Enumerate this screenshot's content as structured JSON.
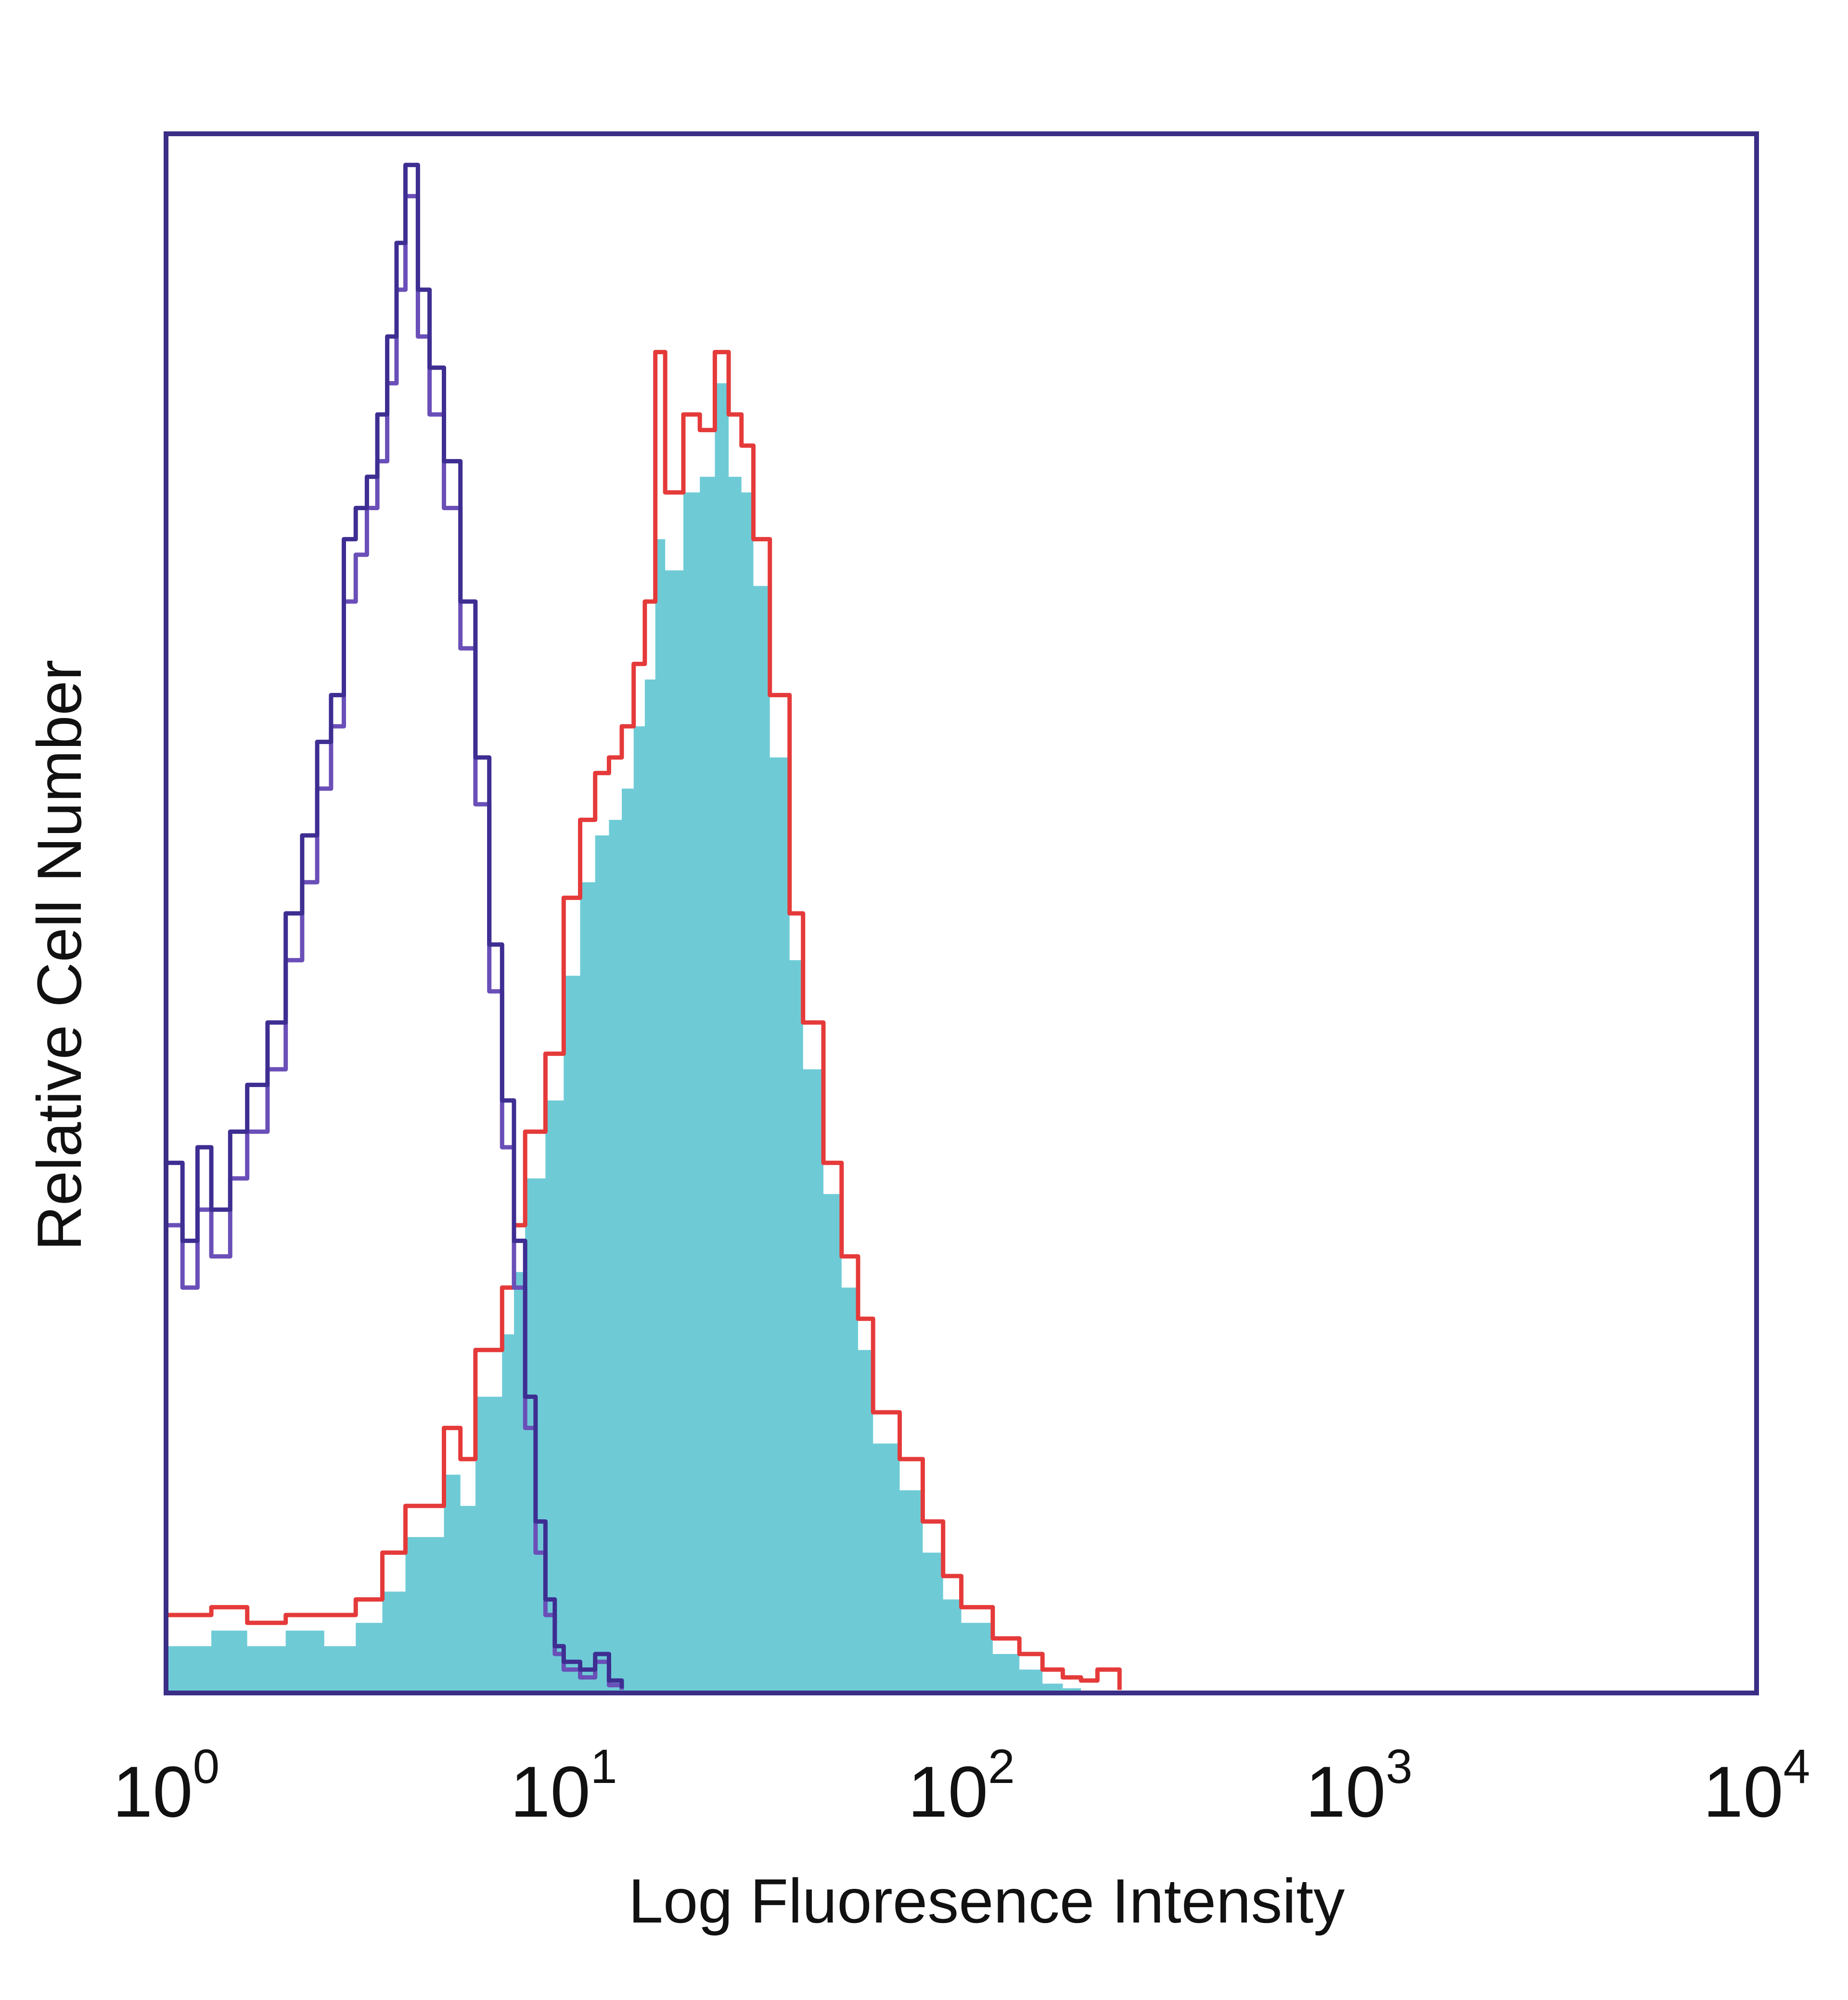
{
  "chart_data": {
    "type": "area",
    "x_scale": "log10",
    "xlim": [
      1,
      10000
    ],
    "ylim": [
      0,
      100
    ],
    "y_ticks_shown": false,
    "grid": false,
    "legend": "none",
    "xlabel": "Log Fluoresence Intensity",
    "ylabel": "Relative Cell Number",
    "x_tick_labels": [
      {
        "value": 1,
        "base": "10",
        "exp": "0"
      },
      {
        "value": 10,
        "base": "10",
        "exp": "1"
      },
      {
        "value": 100,
        "base": "10",
        "exp": "2"
      },
      {
        "value": 1000,
        "base": "10",
        "exp": "3"
      },
      {
        "value": 10000,
        "base": "10",
        "exp": "4"
      }
    ],
    "colors": {
      "frame": "#3a2e86",
      "text": "#111111"
    },
    "series": [
      {
        "style": "fill",
        "fill": "#6ecbd6",
        "x": [
          1.0,
          1.3,
          1.6,
          2.0,
          2.5,
          3.0,
          3.5,
          4.0,
          5.0,
          5.5,
          6.0,
          7.0,
          7.5,
          8.0,
          9.0,
          10,
          11,
          12,
          13,
          14,
          15,
          16,
          17,
          18,
          20,
          22,
          24,
          26,
          28,
          30,
          33,
          37,
          40,
          45,
          50,
          55,
          60,
          70,
          80,
          90,
          100,
          120,
          140,
          160,
          180,
          200
        ],
        "y": [
          3.0,
          4.0,
          3.0,
          4.0,
          3.0,
          4.5,
          6.5,
          10,
          14,
          12,
          19,
          23,
          27,
          33,
          38,
          46,
          52,
          55,
          56,
          58,
          62,
          65,
          74,
          72,
          77,
          78,
          84,
          78,
          77,
          71,
          60,
          47,
          40,
          32,
          26,
          22,
          16,
          13,
          9.0,
          6.0,
          4.5,
          2.5,
          1.5,
          0.6,
          0.3,
          0
        ]
      },
      {
        "style": "line",
        "color": "#e53a3a",
        "x": [
          1.0,
          1.3,
          1.6,
          2.0,
          2.5,
          3.0,
          3.5,
          4.0,
          5.0,
          5.5,
          6.0,
          7.0,
          7.5,
          8.0,
          9.0,
          10,
          11,
          12,
          13,
          14,
          15,
          16,
          17,
          18,
          20,
          22,
          24,
          26,
          28,
          30,
          33,
          37,
          40,
          45,
          50,
          55,
          60,
          70,
          80,
          90,
          100,
          120,
          140,
          160,
          180,
          200,
          220,
          250
        ],
        "y": [
          5.0,
          5.5,
          4.5,
          5.0,
          5.0,
          6.0,
          9.0,
          12,
          17,
          15,
          22,
          26,
          30,
          36,
          41,
          51,
          56,
          59,
          60,
          62,
          66,
          70,
          86,
          77,
          82,
          81,
          86,
          82,
          80,
          74,
          64,
          50,
          43,
          34,
          28,
          24,
          18,
          15,
          11,
          7.5,
          5.5,
          3.5,
          2.5,
          1.5,
          1.0,
          0.8,
          1.5,
          0.2
        ]
      },
      {
        "style": "line",
        "color": "#6a4fb8",
        "x": [
          1.0,
          1.1,
          1.2,
          1.3,
          1.45,
          1.6,
          1.8,
          2.0,
          2.2,
          2.4,
          2.6,
          2.8,
          3.0,
          3.2,
          3.4,
          3.6,
          3.8,
          4.0,
          4.3,
          4.6,
          5.0,
          5.5,
          6.0,
          6.5,
          7.0,
          7.5,
          8.0,
          8.5,
          9.0,
          9.5,
          10,
          11,
          12,
          13,
          14
        ],
        "y": [
          30,
          26,
          31,
          28,
          33,
          36,
          40,
          47,
          52,
          58,
          62,
          70,
          73,
          76,
          79,
          84,
          90,
          96,
          87,
          82,
          76,
          67,
          57,
          45,
          35,
          26,
          17,
          9.0,
          5.0,
          2.5,
          1.5,
          1.0,
          2.0,
          0.5,
          0.2
        ]
      },
      {
        "style": "line",
        "color": "#3e2e92",
        "x": [
          1.0,
          1.1,
          1.2,
          1.3,
          1.45,
          1.6,
          1.8,
          2.0,
          2.2,
          2.4,
          2.6,
          2.8,
          3.0,
          3.2,
          3.4,
          3.6,
          3.8,
          4.0,
          4.3,
          4.6,
          5.0,
          5.5,
          6.0,
          6.5,
          7.0,
          7.5,
          8.0,
          8.5,
          9.0,
          9.5,
          10,
          11,
          12,
          13,
          14
        ],
        "y": [
          34,
          29,
          35,
          31,
          36,
          39,
          43,
          50,
          55,
          61,
          64,
          74,
          76,
          78,
          82,
          87,
          93,
          98,
          90,
          85,
          79,
          70,
          60,
          48,
          38,
          29,
          19,
          11,
          6.0,
          3.0,
          2.0,
          1.5,
          2.5,
          0.8,
          0.3
        ]
      }
    ]
  }
}
